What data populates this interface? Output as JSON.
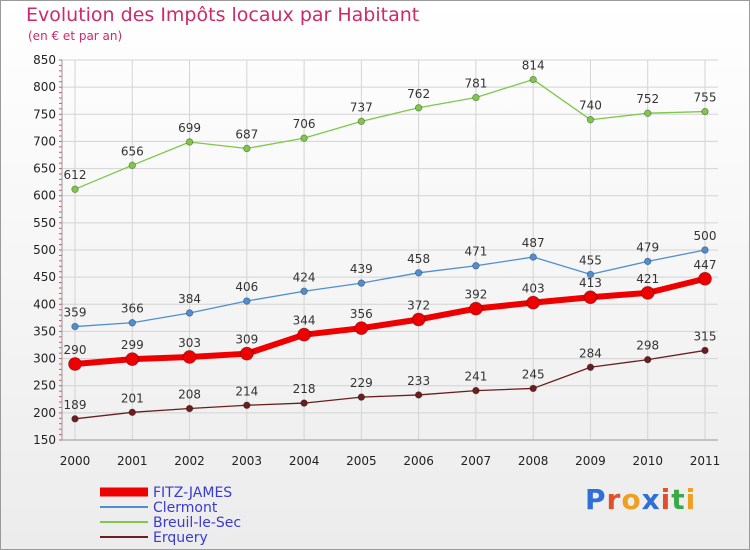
{
  "title": "Evolution des Impôts locaux par Habitant",
  "subtitle": "(en € et par an)",
  "logo": {
    "text": "Proxiti",
    "letter_colors": [
      "#2f6fd6",
      "#e0502a",
      "#f0a020",
      "#2f6fd6",
      "#e0502a",
      "#3aa94a",
      "#f0a020"
    ]
  },
  "chart_data": {
    "type": "line",
    "categories": [
      "2000",
      "2001",
      "2002",
      "2003",
      "2004",
      "2005",
      "2006",
      "2007",
      "2008",
      "2009",
      "2010",
      "2011"
    ],
    "ylim": [
      150,
      850
    ],
    "yticks": [
      150,
      200,
      250,
      300,
      350,
      400,
      450,
      500,
      550,
      600,
      650,
      700,
      750,
      800,
      850
    ],
    "grid": true,
    "legend_position": "bottom-left",
    "series": [
      {
        "name": "Breuil-le-Sec",
        "color": "#7dc84a",
        "values": [
          612,
          656,
          699,
          687,
          706,
          737,
          762,
          781,
          814,
          740,
          752,
          755
        ]
      },
      {
        "name": "Clermont",
        "color": "#4f8fcf",
        "values": [
          359,
          366,
          384,
          406,
          424,
          439,
          458,
          471,
          487,
          455,
          479,
          500
        ]
      },
      {
        "name": "Erquery",
        "color": "#6a1e1e",
        "values": [
          189,
          201,
          208,
          214,
          218,
          229,
          233,
          241,
          245,
          284,
          298,
          315
        ]
      },
      {
        "name": "FITZ-JAMES",
        "color": "#ee0000",
        "values": [
          290,
          299,
          303,
          309,
          344,
          356,
          372,
          392,
          403,
          413,
          421,
          447
        ]
      }
    ],
    "legend_order": [
      "FITZ-JAMES",
      "Clermont",
      "Breuil-le-Sec",
      "Erquery"
    ]
  }
}
